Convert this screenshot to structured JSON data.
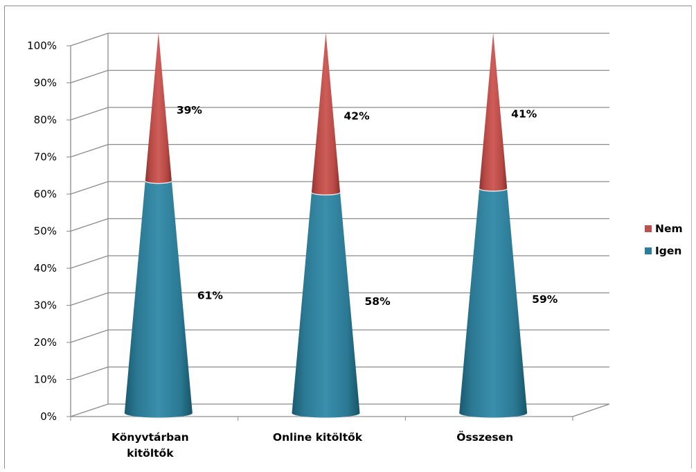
{
  "chart_data": {
    "type": "bar",
    "shape": "cone",
    "stacked": "percent",
    "categories": [
      "Könyvtárban kitöltők",
      "Online kitöltők",
      "Összesen"
    ],
    "series": [
      {
        "name": "Igen",
        "values": [
          61,
          58,
          59
        ],
        "labels": [
          "61%",
          "58%",
          "59%"
        ],
        "color": "#2c7f9a"
      },
      {
        "name": "Nem",
        "values": [
          39,
          42,
          41
        ],
        "labels": [
          "39%",
          "42%",
          "41%"
        ],
        "color": "#c0504d"
      }
    ],
    "ylim": [
      0,
      100
    ],
    "yticks": [
      "0%",
      "10%",
      "20%",
      "30%",
      "40%",
      "50%",
      "60%",
      "70%",
      "80%",
      "90%",
      "100%"
    ],
    "grid": true,
    "legend": {
      "position": "right",
      "entries": [
        "Nem",
        "Igen"
      ]
    }
  }
}
